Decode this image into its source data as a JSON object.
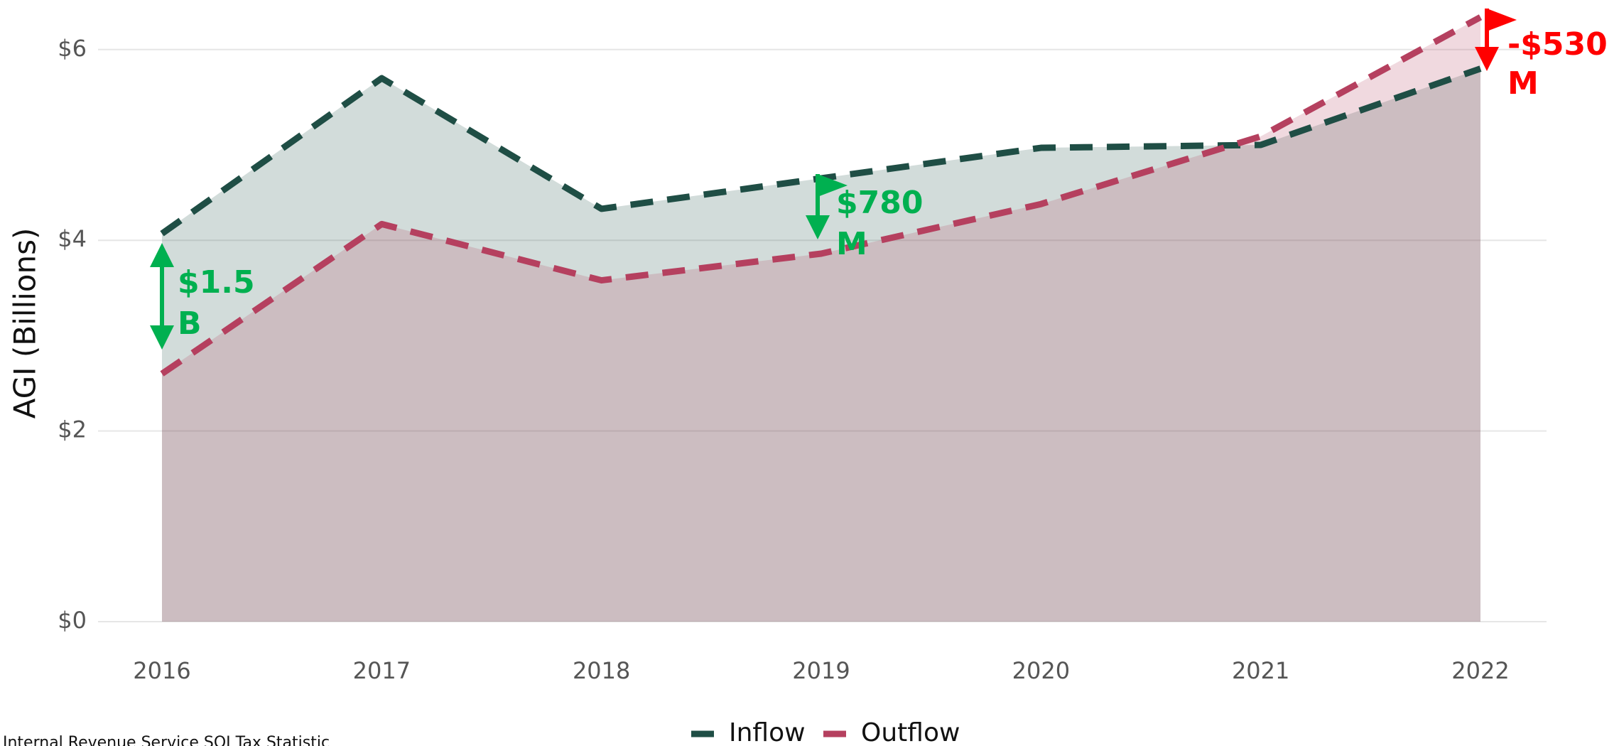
{
  "chart_data": {
    "type": "area_line",
    "y_label": "AGI (Billions)",
    "categories": [
      "2016",
      "2017",
      "2018",
      "2019",
      "2020",
      "2021",
      "2022"
    ],
    "series": [
      {
        "name": "Inflow",
        "color": "#1f4e45",
        "values": [
          4.07,
          5.7,
          4.33,
          4.65,
          4.97,
          5.0,
          5.8
        ]
      },
      {
        "name": "Outflow",
        "color": "#b5405f",
        "values": [
          2.6,
          4.17,
          3.58,
          3.86,
          4.38,
          5.09,
          6.34
        ]
      }
    ],
    "ylim": [
      0,
      6.4
    ],
    "yticks": [
      {
        "value": 0,
        "label": "$0"
      },
      {
        "value": 2,
        "label": "$2"
      },
      {
        "value": 4,
        "label": "$4"
      },
      {
        "value": 6,
        "label": "$6"
      }
    ],
    "grid": true,
    "legend": "bottom",
    "annotations": [
      {
        "lines": [
          "$1.5",
          "B"
        ],
        "color": "#00b050"
      },
      {
        "lines": [
          "$780",
          "M"
        ],
        "color": "#00b050"
      },
      {
        "lines": [
          "-$530",
          "M"
        ],
        "color": "#ff0000"
      }
    ],
    "source": "Internal Revenue Service SOI Tax Statistic"
  }
}
